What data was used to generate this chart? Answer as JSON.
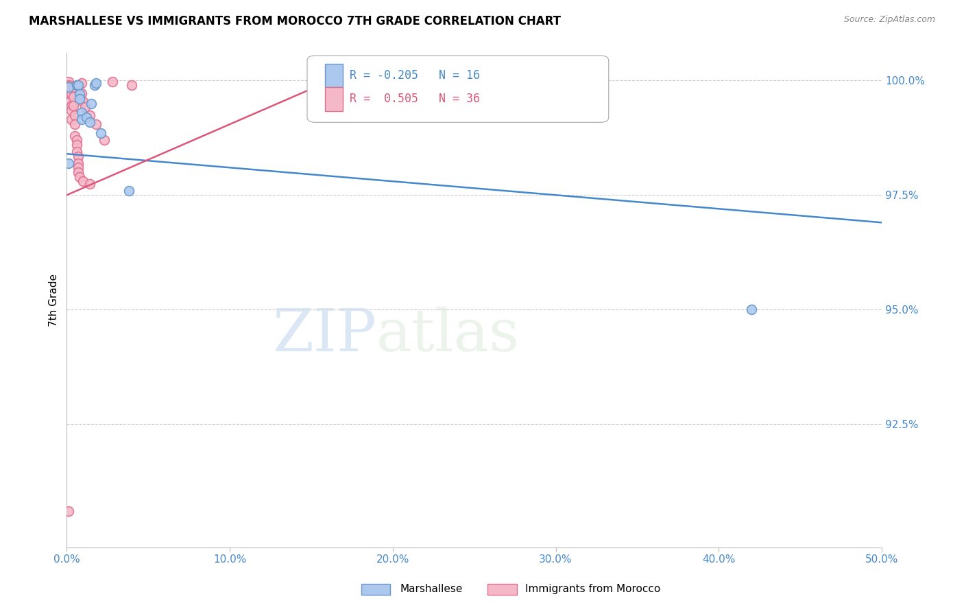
{
  "title": "MARSHALLESE VS IMMIGRANTS FROM MOROCCO 7TH GRADE CORRELATION CHART",
  "source": "Source: ZipAtlas.com",
  "ylabel": "7th Grade",
  "xlim": [
    0.0,
    0.5
  ],
  "ylim": [
    0.898,
    1.006
  ],
  "xtick_labels": [
    "0.0%",
    "10.0%",
    "20.0%",
    "30.0%",
    "40.0%",
    "50.0%"
  ],
  "xtick_values": [
    0.0,
    0.1,
    0.2,
    0.3,
    0.4,
    0.5
  ],
  "ytick_labels": [
    "92.5%",
    "95.0%",
    "97.5%",
    "100.0%"
  ],
  "ytick_values": [
    0.925,
    0.95,
    0.975,
    1.0
  ],
  "legend_blue_label": "Marshallese",
  "legend_pink_label": "Immigrants from Morocco",
  "legend_r_blue": "-0.205",
  "legend_n_blue": "16",
  "legend_r_pink": "0.505",
  "legend_n_pink": "36",
  "blue_face_color": "#adc8ee",
  "pink_face_color": "#f5b8c8",
  "blue_edge_color": "#6699cc",
  "pink_edge_color": "#e07090",
  "line_blue_color": "#4488cc",
  "line_pink_color": "#dd5577",
  "watermark_zip": "ZIP",
  "watermark_atlas": "atlas",
  "blue_scatter": [
    [
      0.001,
      0.9985
    ],
    [
      0.001,
      0.982
    ],
    [
      0.006,
      0.999
    ],
    [
      0.007,
      0.999
    ],
    [
      0.008,
      0.997
    ],
    [
      0.008,
      0.996
    ],
    [
      0.009,
      0.993
    ],
    [
      0.009,
      0.9915
    ],
    [
      0.012,
      0.992
    ],
    [
      0.014,
      0.991
    ],
    [
      0.015,
      0.995
    ],
    [
      0.017,
      0.999
    ],
    [
      0.018,
      0.9995
    ],
    [
      0.021,
      0.9885
    ],
    [
      0.038,
      0.976
    ],
    [
      0.42,
      0.95
    ]
  ],
  "pink_scatter": [
    [
      0.001,
      0.9998
    ],
    [
      0.001,
      0.999
    ],
    [
      0.001,
      0.998
    ],
    [
      0.002,
      0.9988
    ],
    [
      0.002,
      0.997
    ],
    [
      0.002,
      0.9955
    ],
    [
      0.003,
      0.997
    ],
    [
      0.003,
      0.9945
    ],
    [
      0.003,
      0.9935
    ],
    [
      0.003,
      0.9915
    ],
    [
      0.004,
      0.9985
    ],
    [
      0.004,
      0.9965
    ],
    [
      0.004,
      0.9945
    ],
    [
      0.005,
      0.9925
    ],
    [
      0.005,
      0.9905
    ],
    [
      0.005,
      0.988
    ],
    [
      0.006,
      0.987
    ],
    [
      0.006,
      0.986
    ],
    [
      0.006,
      0.9845
    ],
    [
      0.007,
      0.9835
    ],
    [
      0.007,
      0.982
    ],
    [
      0.007,
      0.981
    ],
    [
      0.007,
      0.98
    ],
    [
      0.008,
      0.979
    ],
    [
      0.009,
      0.9995
    ],
    [
      0.009,
      0.9972
    ],
    [
      0.01,
      0.9955
    ],
    [
      0.01,
      0.978
    ],
    [
      0.011,
      0.9942
    ],
    [
      0.014,
      0.9925
    ],
    [
      0.014,
      0.9775
    ],
    [
      0.018,
      0.9905
    ],
    [
      0.023,
      0.987
    ],
    [
      0.04,
      0.999
    ],
    [
      0.028,
      0.9998
    ],
    [
      0.001,
      0.906
    ]
  ],
  "blue_line_x": [
    0.0,
    0.5
  ],
  "blue_line_y": [
    0.984,
    0.969
  ],
  "pink_line_x": [
    0.0,
    0.165
  ],
  "pink_line_y": [
    0.975,
    1.0005
  ],
  "marker_size": 100,
  "marker_linewidth": 1.2
}
